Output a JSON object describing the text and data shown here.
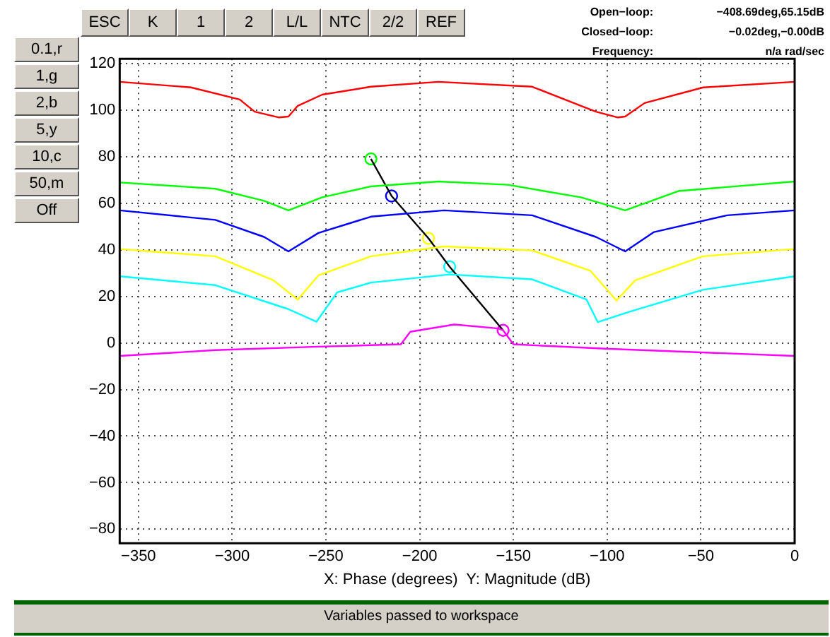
{
  "chart_data": {
    "type": "line",
    "xlabel": "X: Phase (degrees)  Y: Magnitude (dB)",
    "xlim": [
      -360,
      0
    ],
    "ylim": [
      -86,
      122
    ],
    "xticks": [
      -350,
      -300,
      -250,
      -200,
      -150,
      -100,
      -50,
      0
    ],
    "yticks": [
      -80,
      -60,
      -40,
      -20,
      0,
      20,
      40,
      60,
      80,
      100,
      120
    ],
    "grid": true,
    "legend": false,
    "marker": "none",
    "series": [
      {
        "color": "#ff0000",
        "x": [
          -360,
          -322,
          -296,
          -288,
          -275,
          -270,
          -265,
          -252,
          -226,
          -190,
          -140,
          -114,
          -106,
          -94.3,
          -90.4,
          -80,
          -48.7,
          0
        ],
        "values": [
          112.1,
          109.7,
          104.5,
          99.3,
          96.8,
          97.2,
          101.8,
          106.6,
          110,
          112.1,
          110,
          101.8,
          99.3,
          96.8,
          97.2,
          103,
          109.7,
          112.1
        ]
      },
      {
        "color": "#00ff00",
        "x": [
          -360,
          -309,
          -283,
          -270,
          -252,
          -226,
          -190,
          -153,
          -114,
          -90.4,
          -62,
          0
        ],
        "values": [
          68.9,
          66.2,
          61,
          56.9,
          62.5,
          67.2,
          69.3,
          67.9,
          62.5,
          56.9,
          65.2,
          69.3
        ]
      },
      {
        "color": "#0000ff",
        "x": [
          -360,
          -309,
          -283,
          -270,
          -254,
          -226,
          -187,
          -140,
          -106,
          -90.4,
          -75,
          -36,
          0
        ],
        "values": [
          56.9,
          52.8,
          45.5,
          39.3,
          47.2,
          54.2,
          56.9,
          54.8,
          45.5,
          39.3,
          47.6,
          54.8,
          56.9
        ]
      },
      {
        "color": "#ffff00",
        "x": [
          -360,
          -309,
          -278,
          -265,
          -254,
          -226,
          -187,
          -140,
          -109,
          -95,
          -85,
          -49,
          0
        ],
        "values": [
          40.3,
          37.2,
          26.9,
          18.6,
          29,
          37.2,
          41.4,
          39.7,
          31,
          18.2,
          26.9,
          37.2,
          40.3
        ]
      },
      {
        "color": "#00ffff",
        "x": [
          -360,
          -309,
          -270,
          -255,
          -244,
          -226,
          -184,
          -140,
          -111,
          -105,
          -88,
          -49,
          0
        ],
        "values": [
          28.6,
          24.8,
          14.5,
          9.1,
          21.7,
          25.9,
          29.4,
          27.3,
          18.6,
          8.9,
          13.4,
          22.8,
          28.6
        ]
      },
      {
        "color": "#ff00ff",
        "x": [
          -360,
          -309,
          -257,
          -210,
          -205,
          -181.5,
          -158,
          -155.5,
          -150,
          -101,
          0
        ],
        "values": [
          -5.6,
          -3.1,
          -1.7,
          -0.6,
          4.8,
          7.9,
          6.2,
          5.4,
          -0.6,
          -2.5,
          -5.6
        ]
      },
      {
        "color": "#000000",
        "x": [
          -226,
          -215,
          -195.3,
          -184,
          -155.5
        ],
        "values": [
          79,
          63.1,
          44.9,
          32.7,
          5.4
        ]
      },
      {
        "type": "scatter",
        "marker": "circle",
        "color": "#000000",
        "colors": [
          "#00ff00",
          "#0000ff",
          "#ffff00",
          "#00ffff",
          "#ff00ff"
        ],
        "x": [
          -226,
          -215,
          -195.3,
          -184,
          -155.5
        ],
        "values": [
          79,
          63.1,
          44.9,
          32.7,
          5.4
        ]
      }
    ],
    "annotations": [
      "ESC",
      "K",
      "1",
      "2",
      "L/L",
      "NTC",
      "2/2",
      "REF",
      "0.1,r",
      "1,g",
      "2,b",
      "5,y",
      "10,c",
      "50,m",
      "Off",
      "Open−loop:",
      "−408.69deg,65.15dB",
      "Closed−loop:",
      "−0.02deg,−0.00dB",
      "Frequency:",
      "n/a rad/sec",
      "Variables passed to workspace"
    ]
  }
}
